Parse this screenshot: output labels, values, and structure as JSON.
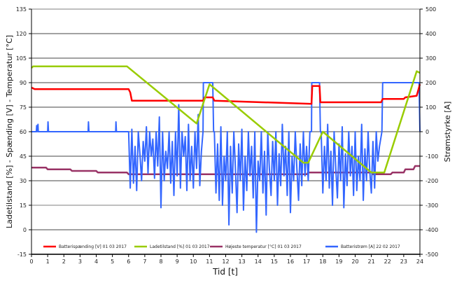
{
  "chart_data": {
    "type": "line",
    "xlabel": "Tid [t]",
    "ylabel": "Ladetilstand [%] - Spænding [V] - Temperatur [°C]",
    "y2label": "Strømstyrke [A]",
    "xlim": [
      0,
      24
    ],
    "ylim": [
      -15,
      135
    ],
    "y2lim": [
      -500,
      500
    ],
    "xticks": [
      0,
      1,
      2,
      3,
      4,
      5,
      6,
      7,
      8,
      9,
      10,
      11,
      12,
      13,
      14,
      15,
      16,
      17,
      18,
      19,
      20,
      21,
      22,
      23,
      24
    ],
    "yticks": [
      -15,
      0,
      15,
      30,
      45,
      60,
      75,
      90,
      105,
      120,
      135
    ],
    "y2ticks": [
      -500,
      -400,
      -300,
      -200,
      -100,
      0,
      100,
      200,
      300,
      400,
      500
    ],
    "grid": true,
    "legend_position": "bottom",
    "series": [
      {
        "name": "Batterispænding [V] 01 03 2017",
        "axis": "left",
        "color": "#ff0000",
        "x": [
          0,
          0.2,
          6,
          6.1,
          6.2,
          10.6,
          10.7,
          11.2,
          11.3,
          17.3,
          17.35,
          17.8,
          17.85,
          21.6,
          21.7,
          23,
          23.1,
          23.8,
          24
        ],
        "y": [
          87,
          86,
          86,
          84,
          79,
          79,
          81,
          81,
          79,
          77,
          88,
          88,
          78,
          78,
          80,
          80,
          81,
          82,
          89
        ]
      },
      {
        "name": "Ladetilstand [%] 01 03 2017",
        "axis": "left",
        "color": "#99cc00",
        "x": [
          0,
          0.1,
          5.9,
          10.2,
          11,
          16.8,
          17.1,
          18.0,
          21.0,
          21.8,
          23.8,
          24
        ],
        "y": [
          99,
          100,
          100,
          65,
          89,
          41,
          41,
          60,
          35,
          35,
          97,
          96
        ]
      },
      {
        "name": "Højeste temperatur [°C] 01 03 2017",
        "axis": "left",
        "color": "#993366",
        "x": [
          0,
          0.9,
          1,
          2.4,
          2.5,
          4,
          4.1,
          5.9,
          6,
          17,
          17.1,
          21,
          21.1,
          22.2,
          22.3,
          23,
          23.1,
          23.6,
          23.7,
          24
        ],
        "y": [
          38,
          38,
          37,
          37,
          36,
          36,
          35,
          35,
          34,
          34,
          35,
          35,
          34,
          34,
          35,
          35,
          37,
          37,
          39,
          39
        ]
      },
      {
        "name": "Batteristrøm [A] 22 02 2017",
        "axis": "right",
        "color": "#3366ff",
        "x": [
          0,
          0.3,
          0.32,
          0.35,
          0.4,
          0.42,
          1,
          1.02,
          1.05,
          3.5,
          3.52,
          3.55,
          5.2,
          5.22,
          5.25,
          6.0,
          6.1,
          6.2,
          6.3,
          6.4,
          6.5,
          6.6,
          6.7,
          6.8,
          6.9,
          7.0,
          7.1,
          7.2,
          7.3,
          7.4,
          7.5,
          7.6,
          7.7,
          7.8,
          7.9,
          8.0,
          8.1,
          8.2,
          8.3,
          8.4,
          8.5,
          8.6,
          8.7,
          8.8,
          8.9,
          9.0,
          9.1,
          9.2,
          9.3,
          9.4,
          9.5,
          9.6,
          9.7,
          9.8,
          9.9,
          10.0,
          10.1,
          10.2,
          10.3,
          10.4,
          10.5,
          10.6,
          10.62,
          11.2,
          11.25,
          11.3,
          11.4,
          11.5,
          11.6,
          11.7,
          11.8,
          11.9,
          12.0,
          12.1,
          12.2,
          12.3,
          12.4,
          12.5,
          12.6,
          12.7,
          12.8,
          12.9,
          13.0,
          13.1,
          13.2,
          13.3,
          13.4,
          13.5,
          13.6,
          13.7,
          13.8,
          13.9,
          14.0,
          14.1,
          14.2,
          14.3,
          14.4,
          14.5,
          14.6,
          14.7,
          14.8,
          14.9,
          15.0,
          15.1,
          15.2,
          15.3,
          15.4,
          15.5,
          15.6,
          15.7,
          15.8,
          15.9,
          16.0,
          16.1,
          16.2,
          16.3,
          16.4,
          16.5,
          16.6,
          16.7,
          16.8,
          16.9,
          17.0,
          17.1,
          17.2,
          17.3,
          17.32,
          17.8,
          17.85,
          17.9,
          18.0,
          18.1,
          18.2,
          18.3,
          18.4,
          18.5,
          18.6,
          18.7,
          18.8,
          18.9,
          19.0,
          19.1,
          19.2,
          19.3,
          19.4,
          19.5,
          19.6,
          19.7,
          19.8,
          19.9,
          20.0,
          20.1,
          20.2,
          20.3,
          20.4,
          20.5,
          20.6,
          20.7,
          20.8,
          20.9,
          21.0,
          21.1,
          21.2,
          21.3,
          21.4,
          21.5,
          21.65,
          21.7,
          23.95,
          24
        ],
        "y": [
          0,
          0,
          25,
          0,
          30,
          0,
          0,
          40,
          0,
          0,
          40,
          0,
          0,
          40,
          0,
          0,
          -230,
          10,
          -210,
          -60,
          -240,
          0,
          -90,
          -200,
          -40,
          -120,
          20,
          -170,
          0,
          -100,
          -30,
          -190,
          0,
          -140,
          60,
          -310,
          0,
          -200,
          -80,
          -150,
          0,
          -210,
          -40,
          -260,
          0,
          -180,
          110,
          -230,
          0,
          -100,
          -20,
          -240,
          30,
          -200,
          -60,
          -230,
          0,
          -150,
          70,
          -220,
          -80,
          0,
          200,
          200,
          0,
          0,
          -250,
          -50,
          -280,
          20,
          -300,
          -100,
          -200,
          0,
          -380,
          -60,
          -250,
          0,
          -150,
          -330,
          -50,
          -200,
          10,
          -320,
          -100,
          -240,
          0,
          -180,
          -60,
          -270,
          0,
          -410,
          -120,
          -200,
          0,
          -250,
          -80,
          -340,
          0,
          -150,
          -260,
          -40,
          -200,
          0,
          -300,
          -90,
          -220,
          30,
          -180,
          -60,
          -260,
          0,
          -330,
          -100,
          -200,
          0,
          -150,
          -280,
          -50,
          -220,
          0,
          -180,
          -60,
          -200,
          0,
          0,
          200,
          200,
          0,
          0,
          -250,
          -60,
          -200,
          30,
          -230,
          -80,
          -300,
          0,
          -150,
          -270,
          -50,
          -200,
          20,
          -310,
          -90,
          -220,
          0,
          -180,
          -60,
          -260,
          0,
          -240,
          -100,
          -200,
          30,
          -280,
          -70,
          -200,
          0,
          -160,
          -250,
          -40,
          -230,
          0,
          -120,
          -60,
          0,
          200,
          200,
          0
        ]
      }
    ]
  }
}
